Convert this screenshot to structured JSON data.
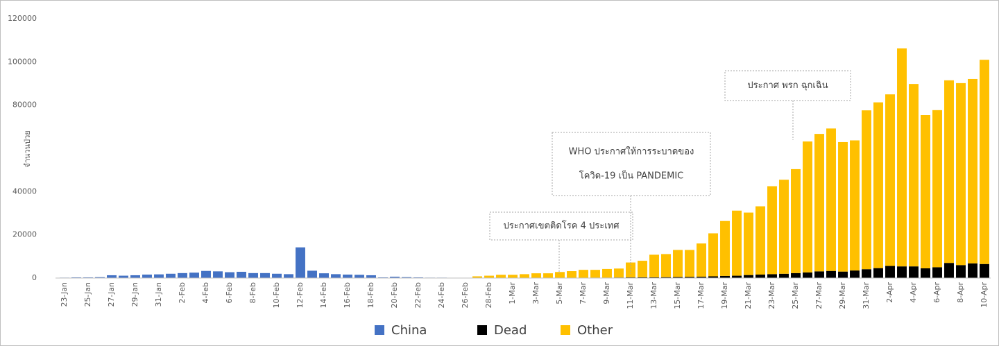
{
  "chart_data": {
    "type": "bar",
    "stacked": true,
    "y_label": "จำนวนป่วย",
    "categories": [
      "23-Jan",
      null,
      "25-Jan",
      null,
      "27-Jan",
      null,
      "29-Jan",
      null,
      "31-Jan",
      null,
      "2-Feb",
      null,
      "4-Feb",
      null,
      "6-Feb",
      null,
      "8-Feb",
      null,
      "10-Feb",
      null,
      "12-Feb",
      null,
      "14-Feb",
      null,
      "16-Feb",
      null,
      "18-Feb",
      null,
      "20-Feb",
      null,
      "22-Feb",
      null,
      "24-Feb",
      null,
      "26-Feb",
      null,
      "28-Feb",
      null,
      "1-Mar",
      null,
      "3-Mar",
      null,
      "5-Mar",
      null,
      "7-Mar",
      null,
      "9-Mar",
      null,
      "11-Mar",
      null,
      "13-Mar",
      null,
      "15-Mar",
      null,
      "17-Mar",
      null,
      "19-Mar",
      null,
      "21-Mar",
      null,
      "23-Mar",
      null,
      "25-Mar",
      null,
      "27-Mar",
      null,
      "29-Mar",
      null,
      "31-Mar",
      null,
      "2-Apr",
      null,
      "4-Apr",
      null,
      "6-Apr",
      null,
      "8-Apr",
      null,
      "10-Apr"
    ],
    "series": [
      {
        "name": "China",
        "color": "#4472c4",
        "values": [
          200,
          300,
          300,
          400,
          1300,
          1100,
          1300,
          1600,
          1700,
          2000,
          2300,
          2500,
          3300,
          3100,
          2700,
          2900,
          2300,
          2300,
          2000,
          1800,
          14200,
          3400,
          2200,
          1800,
          1600,
          1500,
          1300,
          300,
          600,
          400,
          300,
          200,
          200,
          100,
          100,
          null,
          null,
          null,
          null,
          null,
          null,
          null,
          null,
          null,
          null,
          null,
          null,
          null,
          null,
          null,
          null,
          null,
          null,
          null,
          null,
          null,
          null,
          null,
          null,
          null,
          null,
          null,
          null,
          null,
          null,
          null,
          null,
          null,
          null,
          null,
          null,
          null,
          null,
          null,
          null,
          null,
          null,
          null,
          null
        ]
      },
      {
        "name": "Dead",
        "color": "#000000",
        "values": [
          null,
          null,
          null,
          null,
          null,
          null,
          null,
          null,
          null,
          null,
          null,
          null,
          null,
          null,
          null,
          null,
          null,
          null,
          null,
          null,
          null,
          null,
          null,
          null,
          null,
          null,
          null,
          null,
          null,
          null,
          null,
          null,
          null,
          null,
          null,
          30,
          40,
          60,
          70,
          60,
          80,
          80,
          100,
          100,
          100,
          200,
          200,
          250,
          300,
          350,
          350,
          400,
          450,
          500,
          600,
          800,
          1000,
          1100,
          1400,
          1600,
          1800,
          2000,
          2300,
          2600,
          3100,
          3300,
          3000,
          3500,
          4100,
          4600,
          5600,
          5400,
          5400,
          4500,
          5000,
          7000,
          6000,
          6800,
          6500
        ]
      },
      {
        "name": "Other",
        "color": "#ffc000",
        "values": [
          null,
          null,
          null,
          null,
          null,
          null,
          null,
          null,
          null,
          null,
          null,
          null,
          null,
          null,
          null,
          null,
          null,
          null,
          null,
          null,
          null,
          null,
          null,
          null,
          null,
          null,
          null,
          null,
          null,
          null,
          null,
          null,
          null,
          null,
          null,
          770,
          1060,
          1440,
          1430,
          1740,
          2120,
          2120,
          2700,
          3100,
          3700,
          3600,
          4000,
          4150,
          6900,
          7650,
          10450,
          10700,
          12550,
          12500,
          15400,
          19900,
          25400,
          30100,
          28900,
          31600,
          40700,
          43500,
          48100,
          60600,
          63600,
          65900,
          59900,
          60200,
          73500,
          76700,
          79400,
          100900,
          84400,
          70900,
          72700,
          84500,
          84200,
          85300,
          94500
        ]
      }
    ],
    "ylim": [
      0,
      120000
    ],
    "yticks": [
      0,
      20000,
      40000,
      80000,
      100000,
      120000
    ],
    "grid": false,
    "legend": "bottom",
    "annotations": [
      {
        "lines": [
          "ประกาศเขตติดโรค 4 ประเทศ"
        ]
      },
      {
        "lines": [
          "WHO ประกาศให้การระบาดของ",
          "โควิด-19 เป็น PANDEMIC"
        ]
      },
      {
        "lines": [
          "ประกาศ พรก ฉุกเฉิน"
        ]
      }
    ]
  }
}
